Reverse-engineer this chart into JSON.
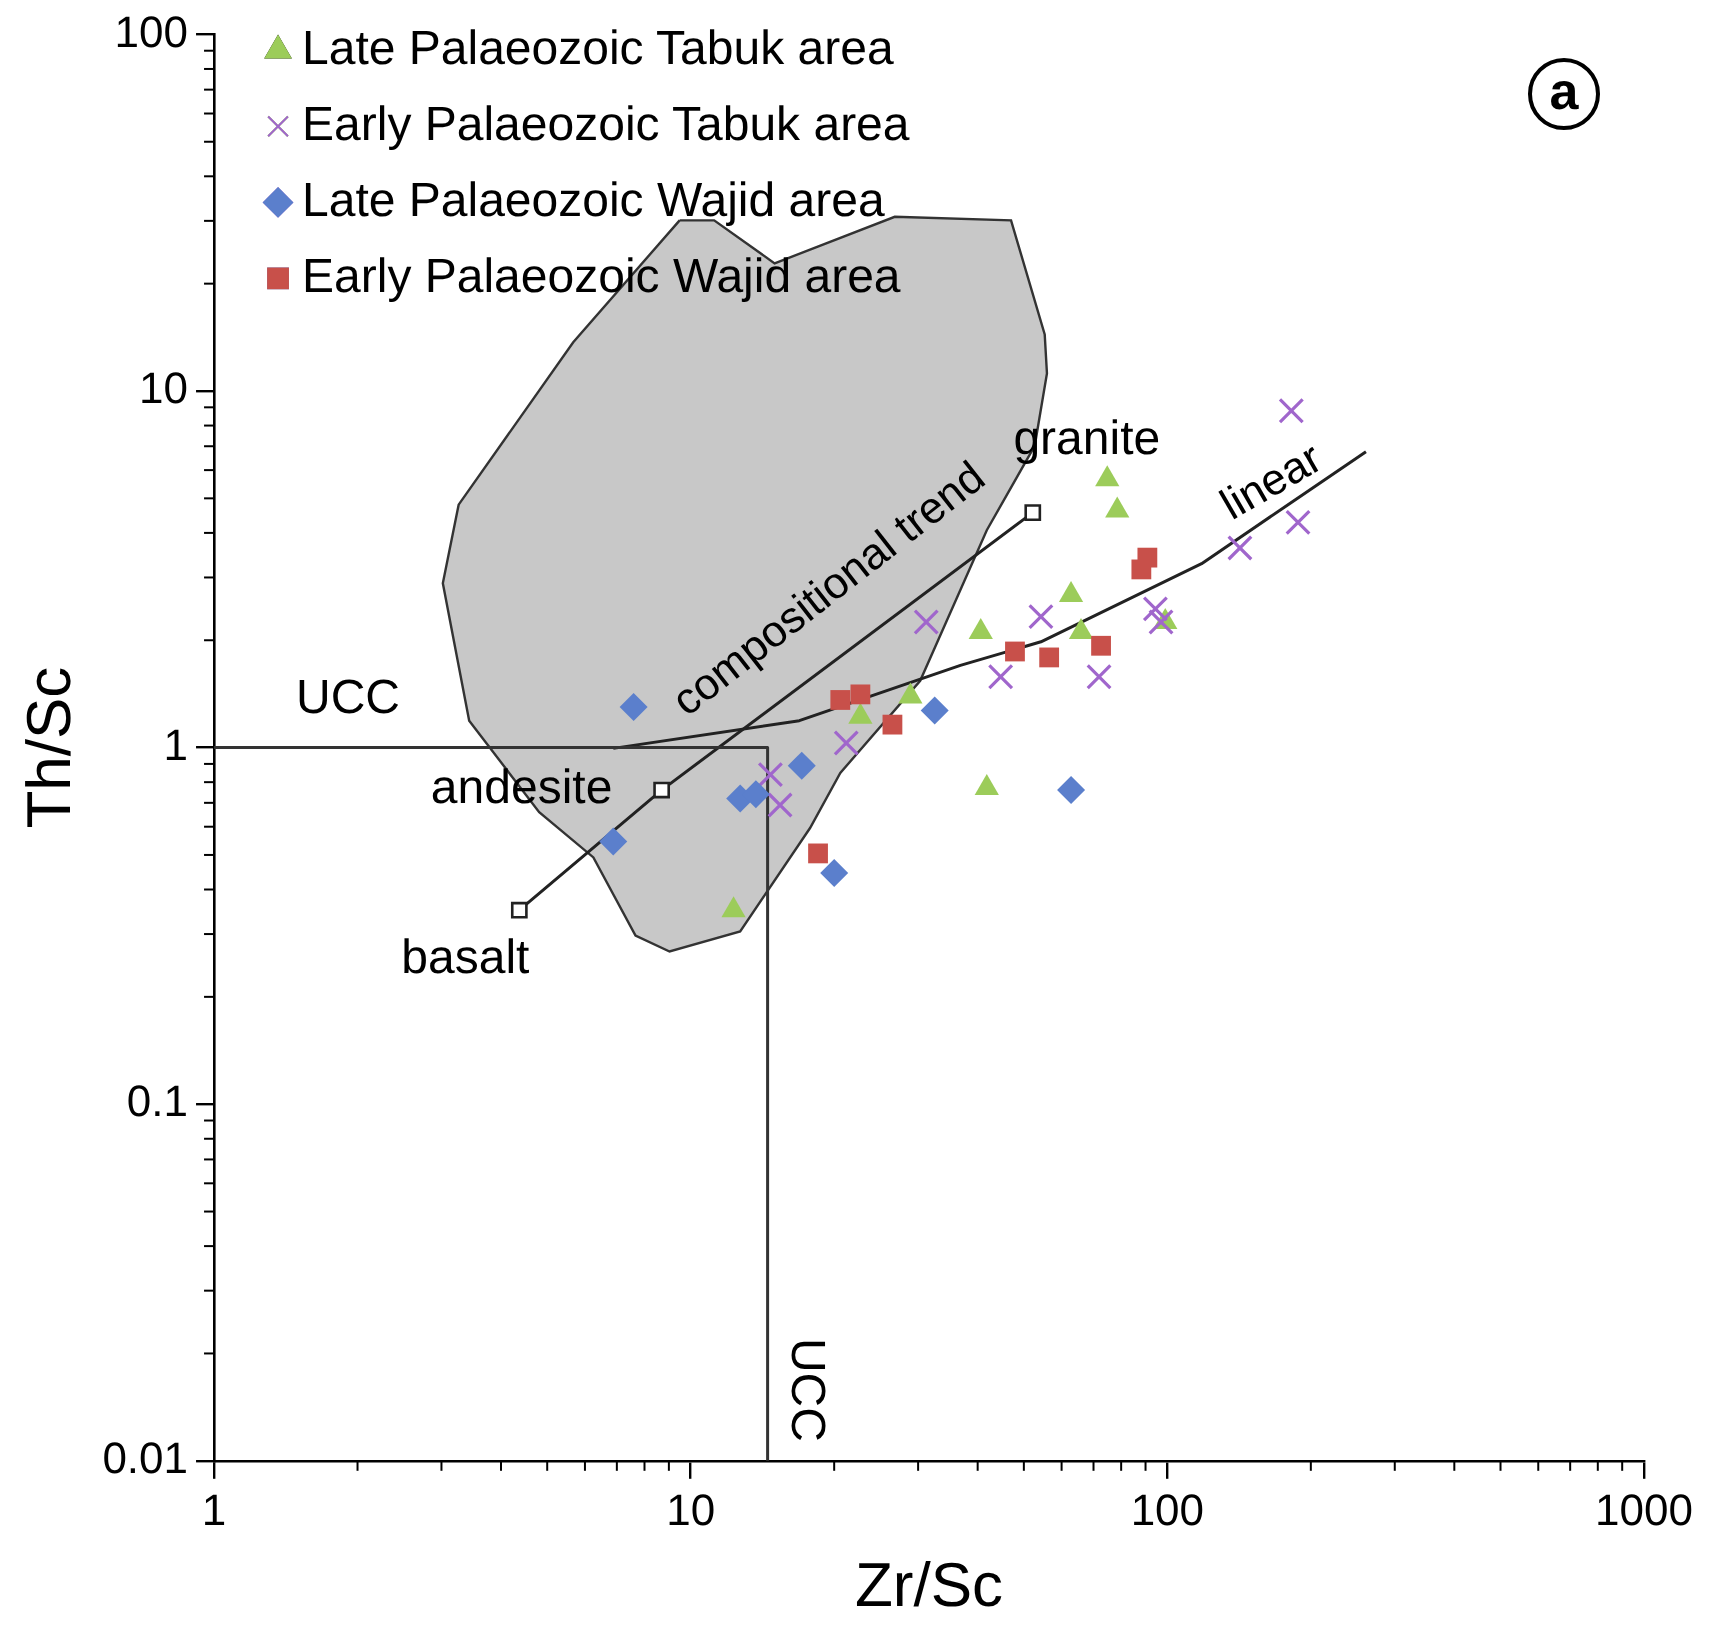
{
  "chart_data": {
    "type": "scatter",
    "xlabel": "Zr/Sc",
    "ylabel": "Th/Sc",
    "log": "xy",
    "grid": false,
    "legend": "top left",
    "xlim": [
      1,
      1000
    ],
    "xticks": [
      1,
      10,
      100,
      1000
    ],
    "ylim": [
      0.01,
      100
    ],
    "yticks": [
      0.01,
      0.1,
      1,
      10,
      100
    ],
    "series": [
      {
        "type": "area",
        "color": "#c8c8c8",
        "x": [
          9.48,
          11.2,
          15.0,
          26.8,
          47.0,
          55.3,
          55.9,
          52.7,
          41.8,
          30.3,
          20.6,
          17.8,
          12.7,
          9.03,
          7.66,
          6.25,
          4.81,
          3.43,
          3.02,
          3.26,
          5.67,
          9.48
        ],
        "values": [
          30.1,
          30.1,
          22.8,
          30.8,
          30.1,
          14.4,
          11.2,
          7.02,
          4.07,
          1.54,
          0.849,
          0.595,
          0.305,
          0.268,
          0.297,
          0.492,
          0.659,
          1.19,
          2.89,
          4.8,
          13.7,
          30.1
        ]
      },
      {
        "type": "line",
        "color": "#333333",
        "marker": "none",
        "x": [
          1,
          14.5,
          14.5
        ],
        "values": [
          1,
          1,
          0.01
        ]
      },
      {
        "type": "line",
        "color": "#222222",
        "marker": "square",
        "x": [
          4.37,
          8.69,
          52.2
        ],
        "values": [
          0.35,
          0.76,
          4.56
        ]
      },
      {
        "type": "line",
        "color": "#222222",
        "marker": "none",
        "x": [
          6.88,
          16.9,
          36.8,
          54.3,
          118,
          261
        ],
        "values": [
          0.995,
          1.19,
          1.7,
          1.98,
          3.28,
          6.76
        ]
      },
      {
        "name": "Late Palaeozoic Tabuk area",
        "color": "#9ccc5a",
        "marker": "triangle",
        "x": [
          12.3,
          22.7,
          28.9,
          74.8,
          78.5,
          62.8,
          40.6,
          65.9,
          99,
          41.8
        ],
        "values": [
          0.35,
          1.22,
          1.39,
          5.66,
          4.62,
          2.68,
          2.11,
          2.11,
          2.25,
          0.77
        ]
      },
      {
        "name": "Early Palaeozoic Tabuk area",
        "color": "#a066cc",
        "marker": "cross",
        "x": [
          182,
          188,
          142,
          94.4,
          97,
          54.3,
          44.7,
          71.9,
          31.2,
          21.2,
          14.7,
          15.4
        ],
        "values": [
          8.8,
          4.28,
          3.63,
          2.45,
          2.25,
          2.33,
          1.58,
          1.58,
          2.25,
          1.03,
          0.84,
          0.69
        ]
      },
      {
        "name": "Late Palaeozoic Wajid area",
        "color": "#5b7fcc",
        "marker": "diamond",
        "x": [
          7.59,
          32.5,
          17.1,
          12.7,
          13.7,
          6.88,
          20.0,
          62.8
        ],
        "values": [
          1.3,
          1.27,
          0.89,
          0.72,
          0.74,
          0.545,
          0.445,
          0.76
        ]
      },
      {
        "name": "Early Palaeozoic Wajid area",
        "color": "#c8504a",
        "marker": "square",
        "x": [
          20.6,
          22.7,
          26.5,
          18.5,
          47.9,
          56.5,
          72.6,
          90.8,
          88.2
        ],
        "values": [
          1.36,
          1.41,
          1.16,
          0.505,
          1.86,
          1.79,
          1.93,
          3.41,
          3.16
        ]
      }
    ],
    "annotations": [
      {
        "text": "UCC",
        "x": 1.91,
        "y": 1
      },
      {
        "text": "UCC",
        "x": 14.5,
        "y": 0.0158
      },
      {
        "text": "andesite",
        "x": 8.69,
        "y": 0.76
      },
      {
        "text": "basalt",
        "x": 4.37,
        "y": 0.35
      },
      {
        "text": "granite",
        "x": 52.2,
        "y": 4.56
      },
      {
        "text": "compositional trend",
        "x": 19.6,
        "y": 1.71
      },
      {
        "text": "linear",
        "x": 166,
        "y": 4.48
      },
      "a"
    ]
  }
}
